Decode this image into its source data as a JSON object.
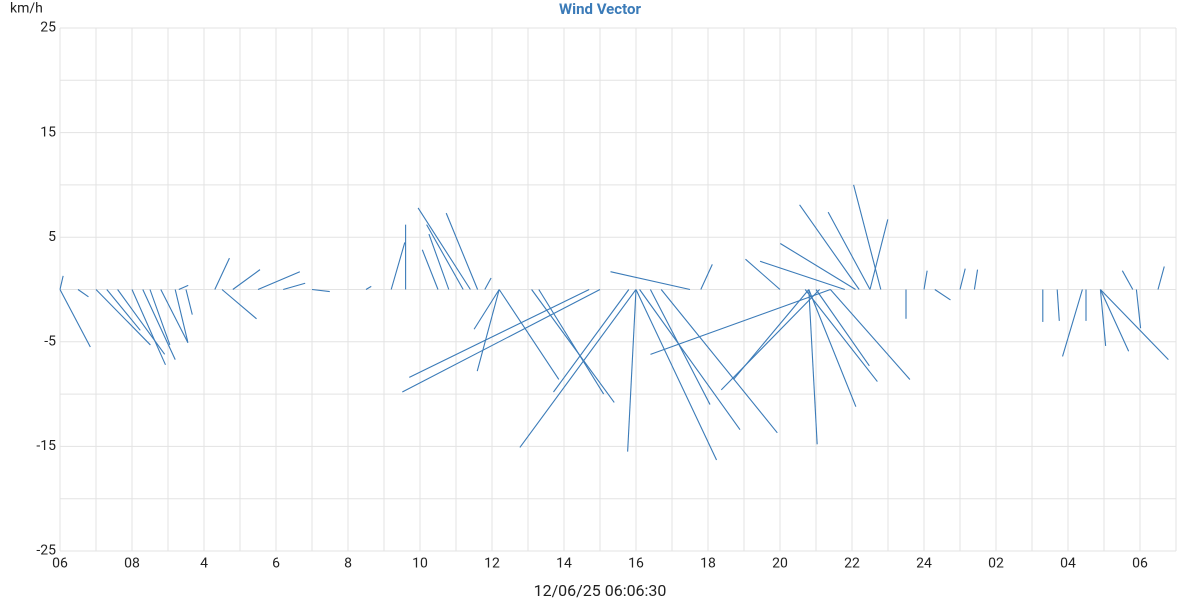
{
  "chart_data": {
    "type": "vector",
    "title": "Wind Vector",
    "y_label": "km/h",
    "x_label": "12/06/25 06:06:30",
    "color": "#3b7bb8",
    "grid": true,
    "xlim": [
      0,
      31
    ],
    "xticks": [
      {
        "value": 0,
        "label": "06"
      },
      {
        "value": 2,
        "label": "08"
      },
      4,
      6,
      8,
      10,
      12,
      14,
      16,
      18,
      20,
      22,
      24,
      {
        "value": 26,
        "label": "02"
      },
      {
        "value": 28,
        "label": "04"
      },
      {
        "value": 30,
        "label": "06"
      }
    ],
    "x_minor_ticks": [
      1,
      3,
      5,
      7,
      9,
      11,
      13,
      15,
      17,
      19,
      21,
      23,
      25,
      27,
      29,
      31
    ],
    "ylim": [
      -25,
      25
    ],
    "yticks": [
      25,
      15,
      5,
      -5,
      -15,
      -25
    ],
    "y_minor_ticks": [
      20,
      10,
      0,
      -10,
      -20
    ],
    "x": [
      0,
      0,
      0.5,
      1.0,
      1.3,
      1.6,
      2.0,
      2.3,
      2.5,
      2.8,
      3.2,
      3.5,
      3.3,
      4.3,
      4.5,
      4.8,
      5.5,
      6.2,
      7.0,
      8.5,
      9.2,
      9.6,
      11.4,
      11.2,
      10.8,
      11.6,
      10.5,
      11.8,
      15.0,
      14.7,
      16.0,
      15.8,
      16.0,
      21.4,
      21.1,
      20.8,
      20.8,
      12.2,
      13.1,
      13.3,
      16.0,
      16.1,
      16.7,
      16.4,
      20.7,
      20.8,
      21.4,
      21.0,
      12.2,
      12.2,
      22.2,
      22.5,
      22.8,
      22.5,
      22.1,
      21.8,
      20.0,
      17.5,
      17.8,
      23.5,
      24.0,
      25.0,
      25.4,
      24.3,
      28.4,
      28.9,
      28.9,
      28.9,
      30.5,
      29.8,
      27.3,
      27.7,
      28.5,
      29.9
    ],
    "u": [
      2.9,
      0.3,
      1.0,
      5.2,
      3.2,
      4.5,
      3.2,
      3.1,
      1.9,
      2.6,
      1.2,
      0.6,
      0.9,
      1.4,
      3.3,
      2.6,
      4.0,
      2.1,
      1.7,
      0.5,
      1.3,
      0,
      -5.0,
      -3.5,
      -1.9,
      -3.0,
      -1.5,
      0.6,
      -18.9,
      -17.2,
      -11.1,
      -7.2,
      -0.8,
      -17.2,
      -9.4,
      -7.2,
      0.8,
      5.7,
      7.9,
      6.2,
      7.7,
      9.6,
      11.1,
      5.7,
      6.9,
      4.5,
      7.6,
      5.1,
      -2.4,
      -2.1,
      -5.7,
      -4.0,
      -2.6,
      1.7,
      -7.2,
      -8.1,
      -3.3,
      -7.6,
      1.1,
      0,
      0.3,
      0.5,
      0.3,
      1.5,
      -1.9,
      0.5,
      2.7,
      6.5,
      0.6,
      -1.0,
      0,
      0.2,
      0,
      0.4
    ],
    "v": [
      -5.5,
      1.3,
      -0.7,
      -5.3,
      -3.9,
      -6.2,
      -7.2,
      -6.7,
      -5.3,
      -5.1,
      -5.0,
      -2.4,
      0.4,
      3.0,
      -2.8,
      1.9,
      1.7,
      0.6,
      -0.2,
      0.3,
      4.5,
      6.2,
      7.8,
      6.2,
      5.3,
      7.3,
      3.8,
      1.1,
      -9.8,
      -8.4,
      -15.1,
      -9.8,
      -15.5,
      -6.2,
      -9.6,
      -8.6,
      -14.8,
      -8.6,
      -10.8,
      -10.0,
      -16.3,
      -13.4,
      -13.7,
      -11.0,
      -8.8,
      -11.2,
      -8.6,
      -7.3,
      -3.8,
      -7.8,
      8.1,
      7.4,
      10.0,
      6.7,
      4.4,
      2.7,
      2.9,
      1.7,
      2.4,
      -2.8,
      1.8,
      2.0,
      1.9,
      -1.0,
      -6.4,
      -5.4,
      -5.9,
      -6.7,
      2.2,
      1.8,
      -3.1,
      -3.0,
      -3.0,
      -3.7
    ]
  }
}
